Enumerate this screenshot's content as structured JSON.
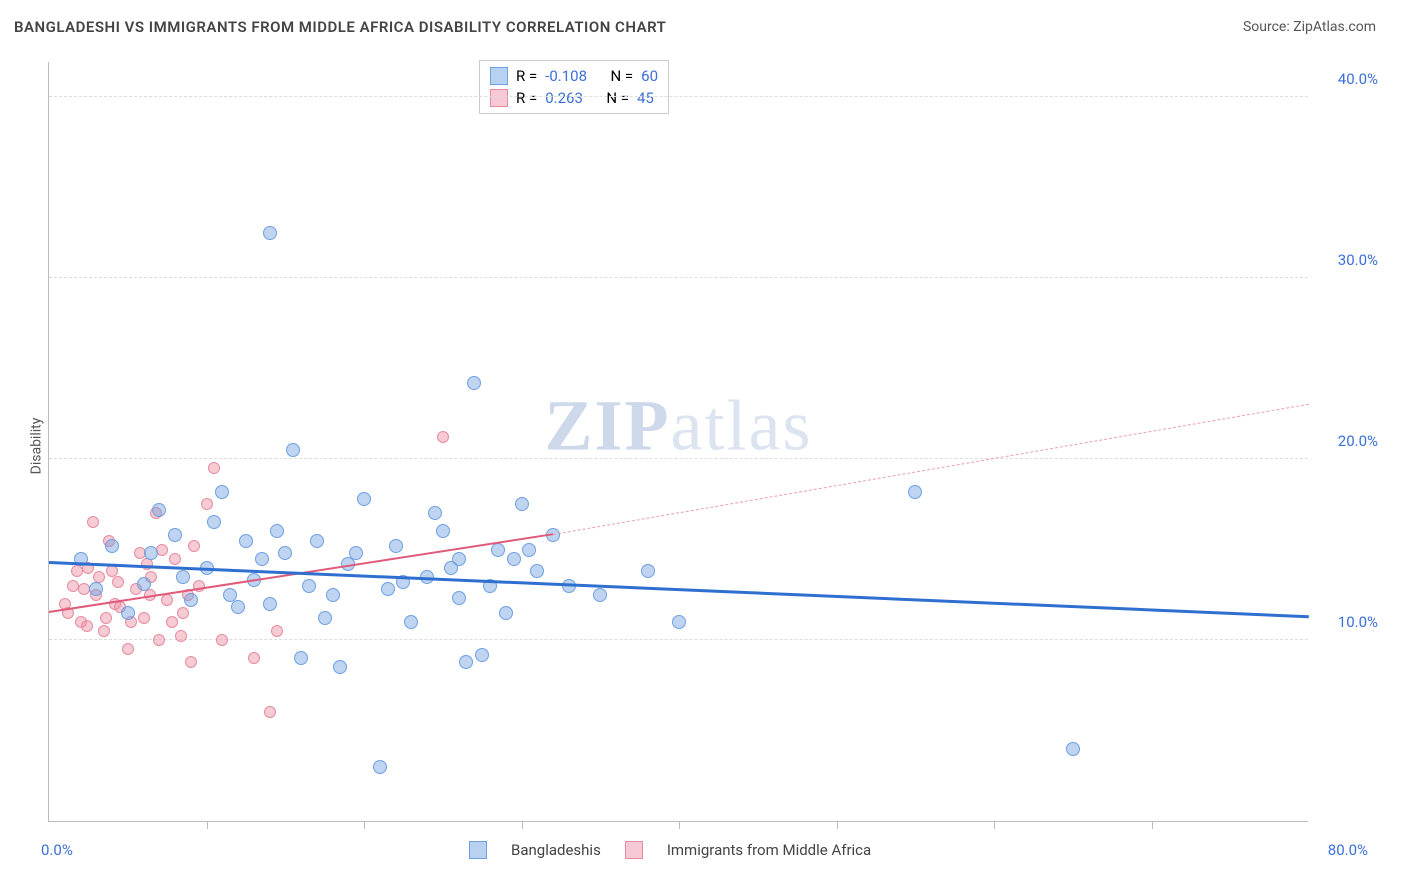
{
  "header": {
    "title": "BANGLADESHI VS IMMIGRANTS FROM MIDDLE AFRICA DISABILITY CORRELATION CHART",
    "source_label": "Source:",
    "source_name": "ZipAtlas.com"
  },
  "axis": {
    "ylabel": "Disability",
    "xlim": [
      0,
      80
    ],
    "ylim": [
      0,
      42
    ],
    "yticks": [
      10,
      20,
      30,
      40
    ],
    "ytick_labels": [
      "10.0%",
      "20.0%",
      "30.0%",
      "40.0%"
    ],
    "xtick_positions": [
      0,
      10,
      20,
      30,
      40,
      50,
      60,
      70
    ],
    "xlabel_left": "0.0%",
    "xlabel_right": "80.0%",
    "grid_color": "#dddddd",
    "border_color": "#bbbbbb",
    "tick_label_color": "#3b6fd8"
  },
  "watermark": {
    "zip": "ZIP",
    "atlas": "atlas"
  },
  "series": {
    "blue": {
      "name": "Bangladeshis",
      "color_fill": "rgba(110,160,225,0.45)",
      "color_stroke": "#6ea0e1",
      "swatch_fill": "#b9d1f0",
      "swatch_border": "#6ea0e1",
      "r_label": "R =",
      "r_value": "-0.108",
      "n_label": "N =",
      "n_value": "60",
      "trend": {
        "x1": 0,
        "y1": 14.2,
        "x2": 80,
        "y2": 11.2,
        "color": "#2f6fd0",
        "width": 3,
        "dash": false
      },
      "points": [
        [
          2,
          14.5
        ],
        [
          3,
          12.8
        ],
        [
          4,
          15.2
        ],
        [
          5,
          11.5
        ],
        [
          6,
          13.1
        ],
        [
          7,
          17.2
        ],
        [
          8,
          15.8
        ],
        [
          9,
          12.2
        ],
        [
          10,
          14.0
        ],
        [
          10.5,
          16.5
        ],
        [
          11,
          18.2
        ],
        [
          12,
          11.8
        ],
        [
          12.5,
          15.5
        ],
        [
          13,
          13.3
        ],
        [
          14,
          12.0
        ],
        [
          14.5,
          16.0
        ],
        [
          15,
          14.8
        ],
        [
          15.5,
          20.5
        ],
        [
          16,
          9.0
        ],
        [
          16.5,
          13.0
        ],
        [
          17,
          15.5
        ],
        [
          18,
          12.5
        ],
        [
          18.5,
          8.5
        ],
        [
          19,
          14.2
        ],
        [
          20,
          17.8
        ],
        [
          21,
          3.0
        ],
        [
          21.5,
          12.8
        ],
        [
          22,
          15.2
        ],
        [
          23,
          11.0
        ],
        [
          24,
          13.5
        ],
        [
          25,
          16.0
        ],
        [
          26,
          12.3
        ],
        [
          27,
          24.2
        ],
        [
          27.5,
          9.2
        ],
        [
          28,
          13.0
        ],
        [
          29,
          11.5
        ],
        [
          30,
          17.5
        ],
        [
          30.5,
          15.0
        ],
        [
          31,
          13.8
        ],
        [
          32,
          15.8
        ],
        [
          14,
          32.5
        ],
        [
          55,
          18.2
        ],
        [
          40,
          11.0
        ],
        [
          65,
          4.0
        ],
        [
          6.5,
          14.8
        ],
        [
          8.5,
          13.5
        ],
        [
          11.5,
          12.5
        ],
        [
          13.5,
          14.5
        ],
        [
          17.5,
          11.2
        ],
        [
          19.5,
          14.8
        ],
        [
          22.5,
          13.2
        ],
        [
          25.5,
          14.0
        ],
        [
          26.5,
          8.8
        ],
        [
          29.5,
          14.5
        ],
        [
          33,
          13.0
        ],
        [
          35,
          12.5
        ],
        [
          38,
          13.8
        ],
        [
          26,
          14.5
        ],
        [
          24.5,
          17.0
        ],
        [
          28.5,
          15.0
        ]
      ],
      "radius": 7
    },
    "pink": {
      "name": "Immigrants from Middle Africa",
      "color_fill": "rgba(235,140,160,0.45)",
      "color_stroke": "#e78ca0",
      "swatch_fill": "#f6c9d4",
      "swatch_border": "#e78ca0",
      "r_label": "R =",
      "r_value": "0.263",
      "n_label": "N =",
      "n_value": "45",
      "trend_solid": {
        "x1": 0,
        "y1": 11.5,
        "x2": 32,
        "y2": 15.8,
        "color": "#e05a7a",
        "width": 2.5,
        "dash": false
      },
      "trend_dash": {
        "x1": 32,
        "y1": 15.8,
        "x2": 80,
        "y2": 23.0,
        "color": "#e8a0b0",
        "width": 1.5,
        "dash": true
      },
      "points": [
        [
          1,
          12.0
        ],
        [
          1.5,
          13.0
        ],
        [
          2,
          11.0
        ],
        [
          2.5,
          14.0
        ],
        [
          3,
          12.5
        ],
        [
          3.5,
          10.5
        ],
        [
          4,
          13.8
        ],
        [
          4.5,
          11.8
        ],
        [
          5,
          9.5
        ],
        [
          5.5,
          12.8
        ],
        [
          6,
          11.2
        ],
        [
          6.5,
          13.5
        ],
        [
          7,
          10.0
        ],
        [
          7.5,
          12.2
        ],
        [
          8,
          14.5
        ],
        [
          8.5,
          11.5
        ],
        [
          9,
          8.8
        ],
        [
          9.5,
          13.0
        ],
        [
          10,
          17.5
        ],
        [
          1.2,
          11.5
        ],
        [
          2.2,
          12.8
        ],
        [
          3.2,
          13.5
        ],
        [
          4.2,
          12.0
        ],
        [
          5.2,
          11.0
        ],
        [
          6.2,
          14.2
        ],
        [
          7.2,
          15.0
        ],
        [
          2.8,
          16.5
        ],
        [
          6.8,
          17.0
        ],
        [
          8.8,
          12.5
        ],
        [
          10.5,
          19.5
        ],
        [
          11,
          10.0
        ],
        [
          13,
          9.0
        ],
        [
          14,
          6.0
        ],
        [
          14.5,
          10.5
        ],
        [
          3.8,
          15.5
        ],
        [
          5.8,
          14.8
        ],
        [
          7.8,
          11.0
        ],
        [
          2.4,
          10.8
        ],
        [
          4.4,
          13.2
        ],
        [
          6.4,
          12.5
        ],
        [
          8.4,
          10.2
        ],
        [
          1.8,
          13.8
        ],
        [
          3.6,
          11.2
        ],
        [
          25,
          21.2
        ],
        [
          9.2,
          15.2
        ]
      ],
      "radius": 6
    }
  },
  "legend_bottom": {
    "items": [
      {
        "swatch_fill": "#b9d1f0",
        "swatch_border": "#6ea0e1",
        "label": "Bangladeshis"
      },
      {
        "swatch_fill": "#f6c9d4",
        "swatch_border": "#e78ca0",
        "label": "Immigrants from Middle Africa"
      }
    ]
  }
}
